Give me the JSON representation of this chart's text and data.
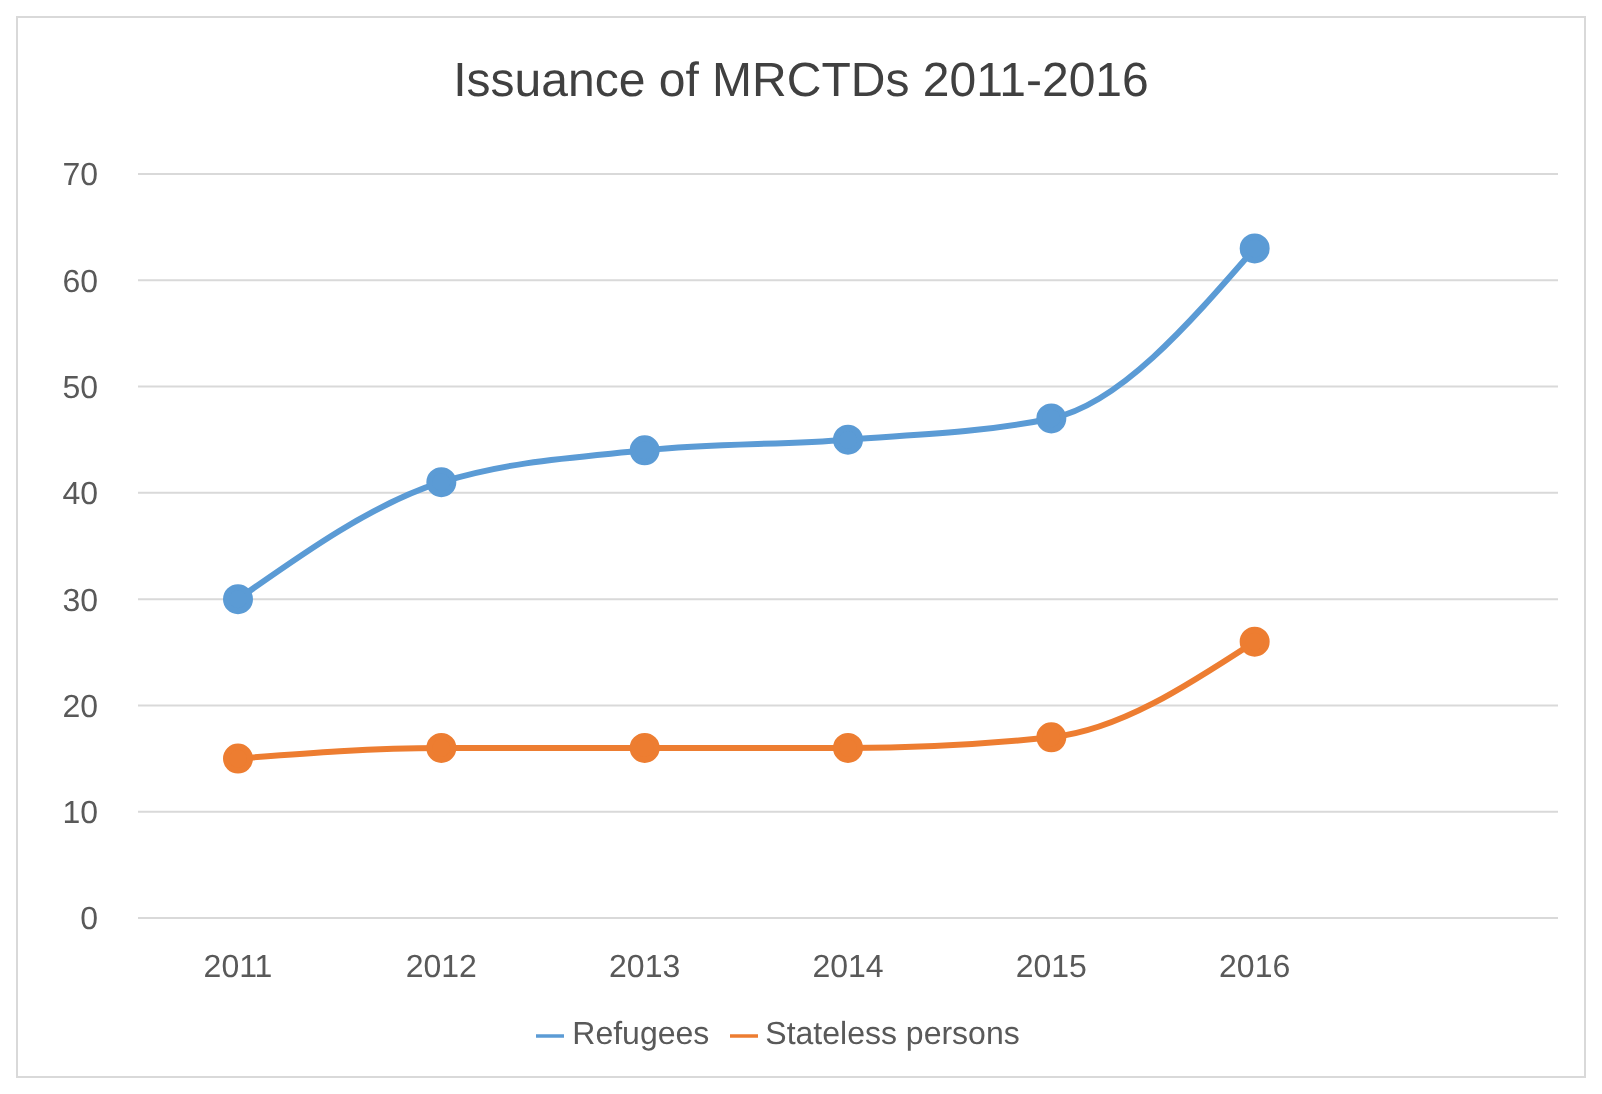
{
  "chart_data": {
    "type": "line",
    "title": "Issuance of MRCTDs 2011-2016",
    "categories": [
      "2011",
      "2012",
      "2013",
      "2014",
      "2015",
      "2016",
      null
    ],
    "series": [
      {
        "name": "Refugees",
        "color": "#5b9bd5",
        "values": [
          30,
          41,
          44,
          45,
          47,
          63,
          null
        ]
      },
      {
        "name": "Stateless persons",
        "color": "#ed7d31",
        "values": [
          15,
          16,
          16,
          16,
          17,
          26,
          null
        ]
      }
    ],
    "ylim": [
      0,
      70
    ],
    "yticks": [
      0,
      10,
      20,
      30,
      40,
      50,
      60,
      70
    ],
    "grid": "y",
    "legend": "bottom",
    "marker": "circle",
    "line_style": "solid"
  }
}
